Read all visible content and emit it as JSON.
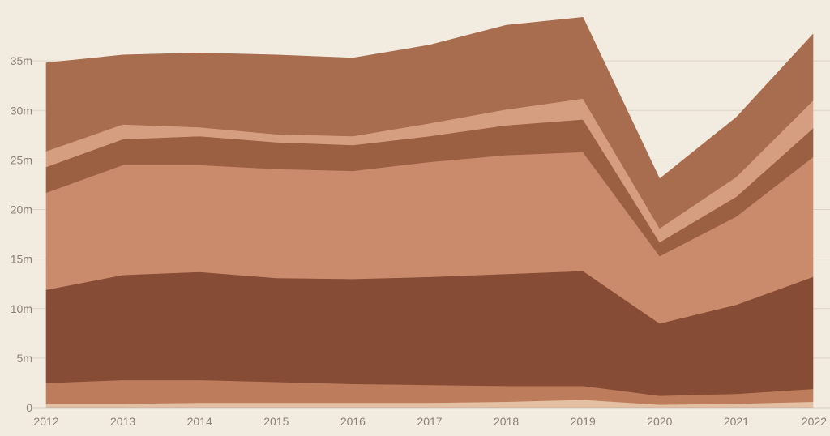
{
  "chart_data": {
    "type": "area",
    "stacked": true,
    "title": "",
    "xlabel": "",
    "ylabel": "",
    "x": [
      "2012",
      "2013",
      "2014",
      "2015",
      "2016",
      "2017",
      "2018",
      "2019",
      "2020",
      "2021",
      "2022"
    ],
    "ylim": [
      0,
      40
    ],
    "yticks": [
      0,
      5,
      10,
      15,
      20,
      25,
      30,
      35
    ],
    "ytick_labels": [
      "0",
      "5m",
      "10m",
      "15m",
      "20m",
      "25m",
      "30m",
      "35m"
    ],
    "grid": "horizontal",
    "legend": "none",
    "series": [
      {
        "color": "#e3c0a4",
        "values": [
          0.4,
          0.4,
          0.5,
          0.5,
          0.5,
          0.5,
          0.6,
          0.8,
          0.3,
          0.4,
          0.6
        ]
      },
      {
        "color": "#bd7c5c",
        "values": [
          2.1,
          2.4,
          2.3,
          2.1,
          1.9,
          1.8,
          1.6,
          1.4,
          0.9,
          1.0,
          1.3
        ]
      },
      {
        "color": "#874c36",
        "values": [
          9.4,
          10.6,
          10.9,
          10.5,
          10.6,
          10.9,
          11.3,
          11.6,
          7.3,
          9.0,
          11.3
        ]
      },
      {
        "color": "#c98b6b",
        "values": [
          9.8,
          11.1,
          10.8,
          11.0,
          10.9,
          11.6,
          12.0,
          12.0,
          6.8,
          8.9,
          12.1
        ]
      },
      {
        "color": "#9b5f42",
        "values": [
          2.6,
          2.6,
          2.9,
          2.7,
          2.6,
          2.6,
          3.0,
          3.3,
          1.4,
          2.0,
          2.9
        ]
      },
      {
        "color": "#d69e80",
        "values": [
          1.6,
          1.5,
          0.9,
          0.8,
          0.9,
          1.3,
          1.6,
          2.1,
          1.4,
          2.0,
          2.8
        ]
      },
      {
        "color": "#a86c4e",
        "values": [
          8.9,
          7.0,
          7.5,
          8.0,
          7.9,
          7.9,
          8.5,
          8.2,
          5.0,
          6.0,
          6.7
        ]
      }
    ]
  }
}
